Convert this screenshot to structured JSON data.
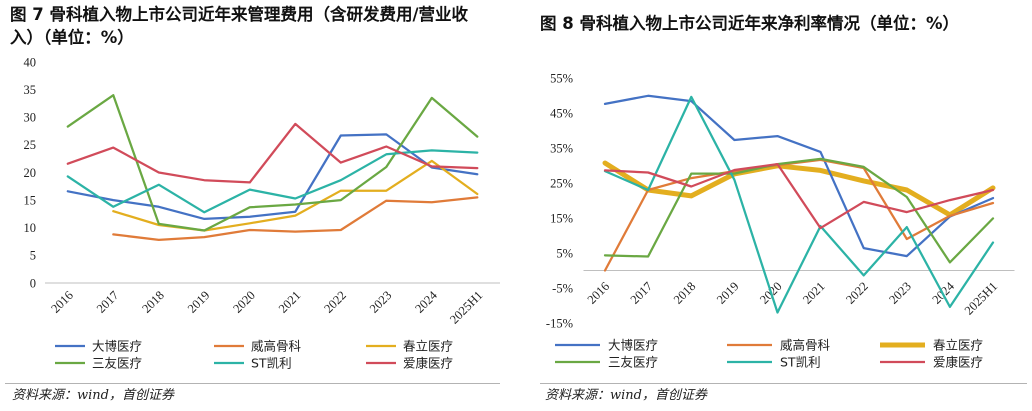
{
  "source": "资料来源：wind，首创证券",
  "chart_data": [
    {
      "type": "line",
      "title": "图 7  骨科植入物上市公司近年来管理费用（含研发费用/营业收入）（单位：%）",
      "categories": [
        "2016",
        "2017",
        "2018",
        "2019",
        "2020",
        "2021",
        "2022",
        "2023",
        "2024",
        "2025H1"
      ],
      "ylim": [
        0,
        40
      ],
      "y_ticks": [
        0,
        5,
        10,
        15,
        20,
        25,
        30,
        35,
        40
      ],
      "y_tick_suffix": "",
      "grid": false,
      "legend": "bottom",
      "series": [
        {
          "name": "大博医疗",
          "color": "#4472C4",
          "values": [
            16.6,
            15.0,
            13.8,
            11.6,
            12.0,
            12.9,
            26.7,
            26.9,
            20.9,
            19.7
          ]
        },
        {
          "name": "威高骨科",
          "color": "#E07B39",
          "values": [
            null,
            8.8,
            7.8,
            8.3,
            9.6,
            9.3,
            9.6,
            14.9,
            14.6,
            15.5
          ]
        },
        {
          "name": "春立医疗",
          "color": "#E3AE1F",
          "values": [
            null,
            13.0,
            10.5,
            9.5,
            10.8,
            12.2,
            16.7,
            16.7,
            22.1,
            16.1
          ]
        },
        {
          "name": "三友医疗",
          "color": "#6AA843",
          "values": [
            28.3,
            34.0,
            10.7,
            9.5,
            13.7,
            14.2,
            15.0,
            21.0,
            33.5,
            26.5
          ]
        },
        {
          "name": "ST凯利",
          "color": "#2CB3A6",
          "values": [
            19.3,
            13.8,
            17.8,
            12.8,
            16.9,
            15.3,
            18.6,
            23.3,
            24.0,
            23.6
          ]
        },
        {
          "name": "爱康医疗",
          "color": "#D14B5A",
          "values": [
            21.6,
            24.5,
            20.0,
            18.6,
            18.2,
            28.8,
            21.8,
            24.7,
            21.1,
            20.8
          ]
        }
      ]
    },
    {
      "type": "line",
      "title": "图 8  骨科植入物上市公司近年来净利率情况（单位：%）",
      "categories": [
        "2016",
        "2017",
        "2018",
        "2019",
        "2020",
        "2021",
        "2022",
        "2023",
        "2024",
        "2025H1"
      ],
      "ylim": [
        -15,
        55
      ],
      "y_ticks": [
        -15,
        -5,
        5,
        15,
        25,
        35,
        45,
        55
      ],
      "y_tick_suffix": "%",
      "grid": false,
      "legend": "bottom",
      "series": [
        {
          "name": "大博医疗",
          "color": "#4472C4",
          "values": [
            47.6,
            49.9,
            48.4,
            37.3,
            38.4,
            33.9,
            6.4,
            4.1,
            15.4,
            20.7
          ]
        },
        {
          "name": "威高骨科",
          "color": "#E07B39",
          "values": [
            0.0,
            23.0,
            26.4,
            28.4,
            30.1,
            31.6,
            29.3,
            9.0,
            15.6,
            19.3
          ]
        },
        {
          "name": "春立医疗",
          "color": "#E3AE1F",
          "values": [
            30.7,
            23.0,
            21.3,
            27.6,
            29.9,
            28.6,
            25.6,
            23.0,
            15.9,
            23.6
          ]
        },
        {
          "name": "三友医疗",
          "color": "#6AA843",
          "values": [
            4.3,
            4.0,
            27.7,
            27.7,
            30.4,
            31.9,
            29.6,
            21.0,
            2.3,
            14.9
          ]
        },
        {
          "name": "ST凯利",
          "color": "#2CB3A6",
          "values": [
            28.4,
            23.0,
            49.6,
            25.9,
            -12.0,
            12.7,
            -1.4,
            12.4,
            -10.4,
            8.0
          ]
        },
        {
          "name": "爱康医疗",
          "color": "#D14B5A",
          "values": [
            28.6,
            28.0,
            24.0,
            28.7,
            30.4,
            12.1,
            19.6,
            16.7,
            20.1,
            23.0
          ]
        }
      ]
    }
  ]
}
